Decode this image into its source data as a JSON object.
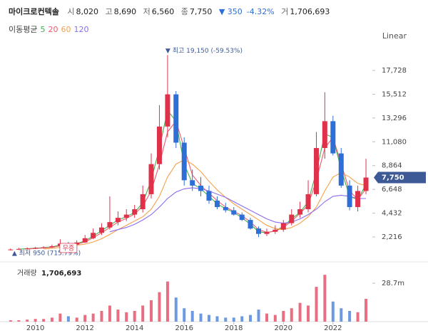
{
  "header": {
    "name": "마이크로컨텍솔",
    "open_label": "시",
    "open": "8,020",
    "high_label": "고",
    "high": "8,690",
    "low_label": "저",
    "low": "6,560",
    "close_label": "종",
    "close": "7,750",
    "change": "▼ 350",
    "change_pct": "-4.32%",
    "volume_label": "거",
    "volume": "1,706,693"
  },
  "ma_label": "이동평균",
  "scale_label": "Linear",
  "chart_data": {
    "type": "candlestick",
    "x": [
      2009,
      2009.33,
      2009.67,
      2010,
      2010.33,
      2010.67,
      2011,
      2011.33,
      2011.67,
      2012,
      2012.33,
      2012.67,
      2013,
      2013.33,
      2013.67,
      2014,
      2014.33,
      2014.67,
      2015,
      2015.33,
      2015.67,
      2016,
      2016.33,
      2016.67,
      2017,
      2017.33,
      2017.67,
      2018,
      2018.33,
      2018.67,
      2019,
      2019.33,
      2019.67,
      2020,
      2020.33,
      2020.67,
      2021,
      2021.33,
      2021.67,
      2022,
      2022.33,
      2022.67,
      2023,
      2023.33
    ],
    "open": [
      1000,
      1050,
      1100,
      1150,
      1200,
      1250,
      1350,
      1600,
      1500,
      1700,
      2100,
      2600,
      3100,
      3600,
      4000,
      4300,
      4800,
      6200,
      9000,
      12500,
      15500,
      11000,
      7500,
      7000,
      6500,
      5600,
      5000,
      4700,
      4300,
      3800,
      3000,
      2500,
      2700,
      2900,
      3500,
      4300,
      4800,
      6200,
      10500,
      13000,
      10000,
      7000,
      5000,
      6500
    ],
    "high": [
      1150,
      1200,
      1250,
      1300,
      1350,
      1500,
      2000,
      1750,
      1900,
      2400,
      3000,
      3500,
      6000,
      4600,
      4800,
      5200,
      7000,
      10000,
      14500,
      19150,
      15800,
      11500,
      8500,
      7800,
      7000,
      6000,
      5400,
      5000,
      4500,
      4000,
      3200,
      3000,
      3300,
      3800,
      4800,
      5500,
      7500,
      12000,
      15700,
      13500,
      10500,
      7500,
      7000,
      9500
    ],
    "low": [
      950,
      1000,
      1050,
      1100,
      1150,
      1200,
      1300,
      1400,
      1450,
      1650,
      2000,
      2400,
      2900,
      3300,
      3700,
      4000,
      4500,
      5800,
      8500,
      11500,
      10500,
      7000,
      6500,
      6000,
      5300,
      4800,
      4500,
      4200,
      3700,
      2900,
      2200,
      2300,
      2500,
      2700,
      3300,
      4000,
      4500,
      6000,
      9500,
      9800,
      6800,
      4700,
      4600,
      6200
    ],
    "close": [
      1050,
      1100,
      1150,
      1200,
      1250,
      1350,
      1600,
      1500,
      1700,
      2100,
      2600,
      3100,
      3600,
      4000,
      4300,
      4800,
      6200,
      9000,
      12500,
      15500,
      11000,
      7500,
      7000,
      6500,
      5600,
      5000,
      4700,
      4300,
      3800,
      3000,
      2500,
      2700,
      2900,
      3500,
      4300,
      4800,
      6200,
      10500,
      13000,
      10000,
      7000,
      5000,
      6500,
      7750
    ],
    "up_color": "#e0314b",
    "down_color": "#2d6fd6",
    "xlim": [
      2008.86,
      2023.53
    ],
    "ylim": [
      760,
      19980
    ],
    "xticks": [
      2010,
      2012,
      2014,
      2016,
      2018,
      2020,
      2022
    ],
    "yticks": [
      {
        "value": 2216,
        "label": "2,216"
      },
      {
        "value": 4432,
        "label": "4,432"
      },
      {
        "value": 6648,
        "label": "6,648"
      },
      {
        "value": 8864,
        "label": "8,864"
      },
      {
        "value": 11080,
        "label": "11,080"
      },
      {
        "value": 13296,
        "label": "13,296"
      },
      {
        "value": 15512,
        "label": "15,512"
      },
      {
        "value": 17728,
        "label": "17,728"
      }
    ],
    "ma_series": [
      {
        "name": "5",
        "color": "#3cb44b",
        "values": [
          null,
          1080,
          1120,
          1170,
          1220,
          1300,
          1450,
          1550,
          1600,
          1850,
          2300,
          2800,
          3300,
          3800,
          4100,
          4500,
          5400,
          7500,
          10500,
          14000,
          13000,
          9000,
          7200,
          6700,
          6000,
          5300,
          4850,
          4500,
          4000,
          3400,
          2700,
          2600,
          2800,
          3200,
          3900,
          4500,
          5500,
          8300,
          11800,
          11500,
          8500,
          6000,
          5700,
          7100
        ]
      },
      {
        "name": "20",
        "color": "#ec5a6c",
        "values": [
          null,
          null,
          1100,
          1140,
          1190,
          1260,
          1400,
          1480,
          1550,
          1750,
          2150,
          2600,
          3100,
          3600,
          3950,
          4350,
          5100,
          6500,
          9000,
          12000,
          13000,
          10500,
          8000,
          7000,
          6300,
          5600,
          5000,
          4600,
          4200,
          3600,
          2900,
          2650,
          2750,
          3100,
          3700,
          4400,
          5200,
          7500,
          10500,
          11500,
          9000,
          6500,
          5700,
          6700
        ]
      },
      {
        "name": "60",
        "color": "#f5a14a",
        "values": [
          null,
          null,
          null,
          null,
          1100,
          1150,
          1250,
          1350,
          1450,
          1550,
          1750,
          2050,
          2450,
          2900,
          3300,
          3700,
          4100,
          4800,
          6000,
          7800,
          9000,
          9400,
          9000,
          8300,
          7400,
          6600,
          5900,
          5300,
          4800,
          4300,
          3800,
          3300,
          3000,
          2900,
          3100,
          3500,
          4100,
          5000,
          6500,
          7800,
          8200,
          7800,
          7200,
          7000
        ]
      },
      {
        "name": "120",
        "color": "#8c6cf0",
        "values": [
          null,
          null,
          null,
          null,
          null,
          null,
          null,
          null,
          null,
          null,
          null,
          null,
          2700,
          2900,
          3100,
          3400,
          3800,
          4300,
          5000,
          5800,
          6400,
          6700,
          6800,
          6700,
          6500,
          6200,
          5900,
          5500,
          5100,
          4700,
          4300,
          3900,
          3600,
          3500,
          3600,
          3900,
          4300,
          4800,
          5500,
          6000,
          6100,
          6000,
          5800,
          5800
        ]
      }
    ],
    "max_label": "▼ 최고 19,150 (-59.53%)",
    "min_label": "▲ 최저 950 (715.79%)",
    "event_label": "무증",
    "volume": {
      "title": "거래량",
      "title_value": "1,706,693",
      "values": [
        1,
        1,
        1.5,
        2,
        2,
        3,
        6,
        4,
        3,
        5,
        6,
        8,
        12,
        9,
        7,
        8,
        12,
        16,
        22,
        30,
        18,
        10,
        8,
        6,
        5,
        4,
        3,
        3,
        4,
        5,
        9,
        6,
        5,
        8,
        10,
        14,
        12,
        26,
        35,
        15,
        10,
        8,
        7,
        17
      ],
      "ylim": [
        0,
        42
      ],
      "yticks": [
        {
          "value": 28.7,
          "label": "28.7m"
        }
      ]
    }
  }
}
